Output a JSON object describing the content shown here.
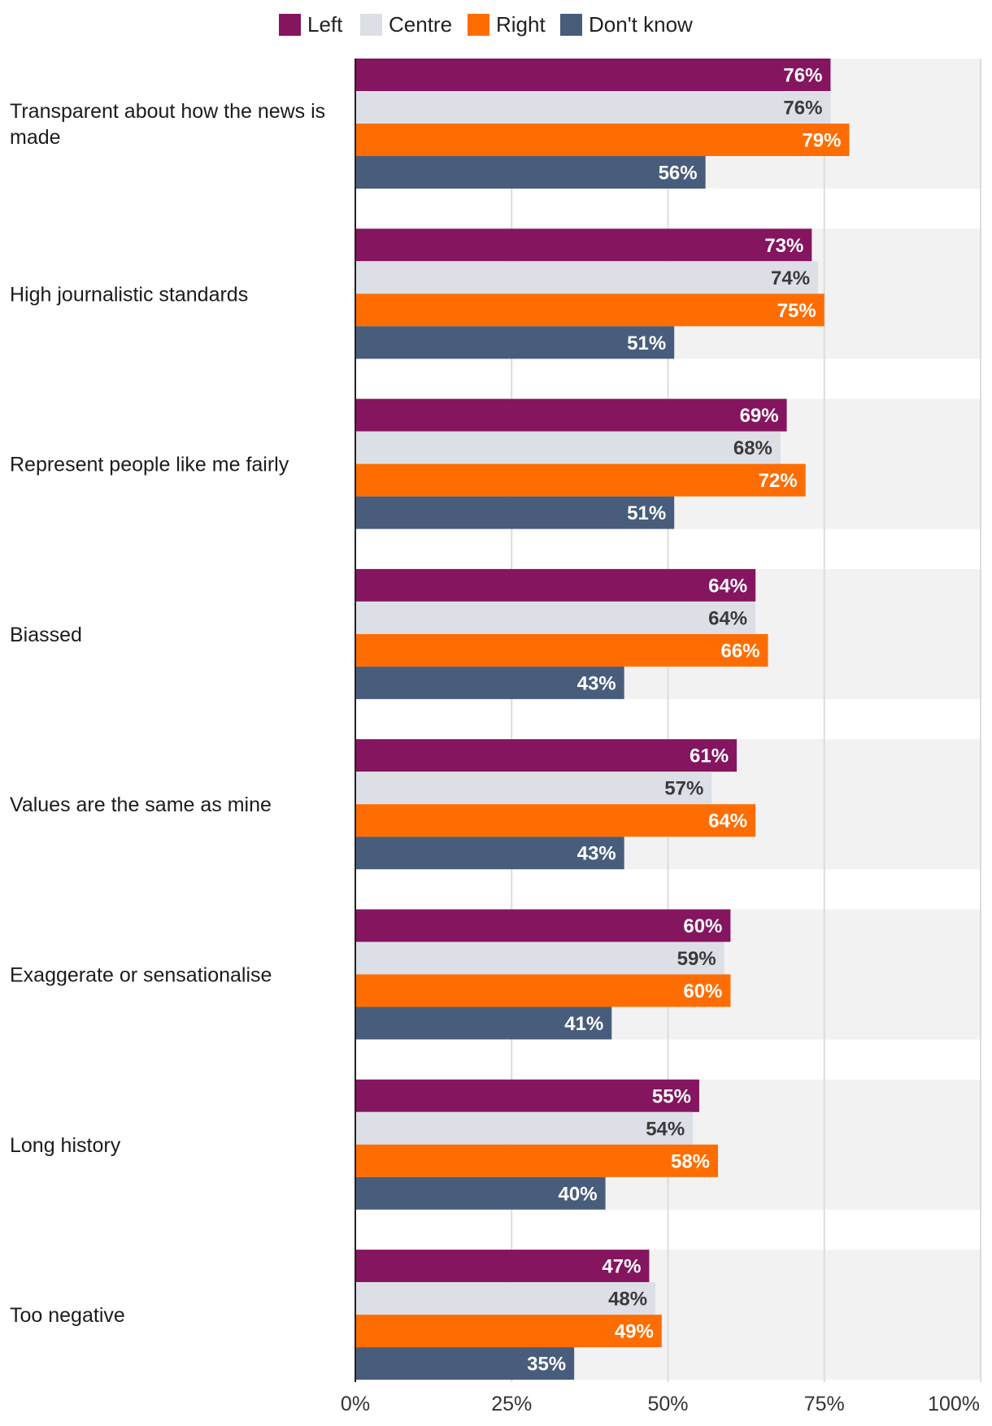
{
  "chart_data": {
    "type": "bar",
    "orientation": "horizontal",
    "categories": [
      "Transparent about how the news is made",
      "High journalistic standards",
      "Represent people like me fairly",
      "Biassed",
      "Values are the same as mine",
      "Exaggerate or sensationalise",
      "Long history",
      "Too negative"
    ],
    "series": [
      {
        "name": "Left",
        "color": "#85155f",
        "label_color": "#ffffff",
        "values": [
          76,
          73,
          69,
          64,
          61,
          60,
          55,
          47
        ]
      },
      {
        "name": "Centre",
        "color": "#dcdfe6",
        "label_color": "#3a3a3a",
        "values": [
          76,
          74,
          68,
          64,
          57,
          59,
          54,
          48
        ]
      },
      {
        "name": "Right",
        "color": "#ff6d00",
        "label_color": "#ffffff",
        "values": [
          79,
          75,
          72,
          66,
          64,
          60,
          58,
          49
        ]
      },
      {
        "name": "Don't know",
        "color": "#485d7c",
        "label_color": "#ffffff",
        "values": [
          56,
          51,
          51,
          43,
          43,
          41,
          40,
          35
        ]
      }
    ],
    "value_suffix": "%",
    "xlim": [
      0,
      100
    ],
    "xticks": [
      0,
      25,
      50,
      75,
      100
    ],
    "xtick_labels": [
      "0%",
      "25%",
      "50%",
      "75%",
      "100%"
    ],
    "legend_position": "top",
    "grid": true
  }
}
